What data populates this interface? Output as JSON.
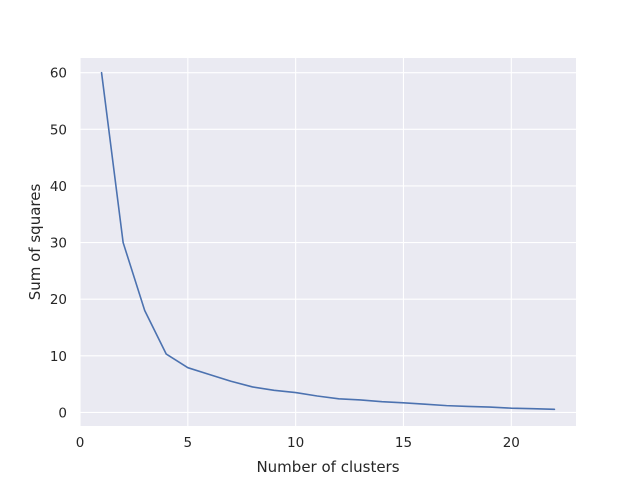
{
  "chart_data": {
    "type": "line",
    "title": "",
    "xlabel": "Number of clusters",
    "ylabel": "Sum of squares",
    "xlim": [
      0,
      23
    ],
    "ylim": [
      -2.4,
      62.6
    ],
    "xticks": [
      0,
      5,
      10,
      15,
      20
    ],
    "yticks": [
      0,
      10,
      20,
      30,
      40,
      50,
      60
    ],
    "grid": true,
    "background_color": "#eaeaf2",
    "grid_color": "#ffffff",
    "series": [
      {
        "color": "#4c72b0",
        "x": [
          1,
          2,
          3,
          4,
          5,
          6,
          7,
          8,
          9,
          10,
          11,
          12,
          13,
          14,
          15,
          16,
          17,
          18,
          19,
          20,
          21,
          22
        ],
        "y": [
          60,
          30,
          18,
          10.3,
          7.9,
          6.7,
          5.5,
          4.5,
          3.9,
          3.5,
          2.9,
          2.4,
          2.2,
          1.9,
          1.7,
          1.45,
          1.2,
          1.05,
          0.95,
          0.75,
          0.65,
          0.55
        ]
      }
    ]
  }
}
